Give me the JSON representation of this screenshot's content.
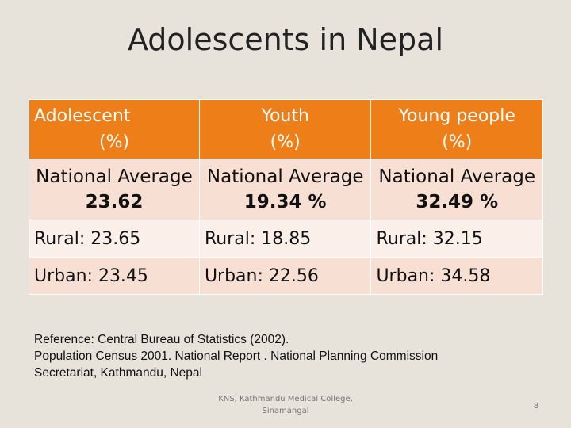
{
  "slide": {
    "title": "Adolescents in Nepal"
  },
  "table": {
    "headers": [
      {
        "line1": "Adolescent",
        "line2": "(%)"
      },
      {
        "line1": "Youth",
        "line2": "(%)"
      },
      {
        "line1": "Young people",
        "line2": "(%)"
      }
    ],
    "national": [
      {
        "label": "National Average",
        "value": "23.62"
      },
      {
        "label": "National Average",
        "value": "19.34 %"
      },
      {
        "label": "National Average",
        "value": "32.49 %"
      }
    ],
    "rural": [
      "Rural: 23.65",
      "Rural: 18.85",
      "Rural: 32.15"
    ],
    "urban": [
      "Urban: 23.45",
      "Urban: 22.56",
      "Urban: 34.58"
    ]
  },
  "reference": {
    "line1": "Reference: Central Bureau of Statistics (2002).",
    "line2": "Population Census 2001. National Report . National Planning Commission",
    "line3": "Secretariat, Kathmandu, Nepal"
  },
  "footer": {
    "line1": "KNS, Kathmandu Medical College,",
    "line2": "Sinamangal",
    "page_number": "8"
  }
}
